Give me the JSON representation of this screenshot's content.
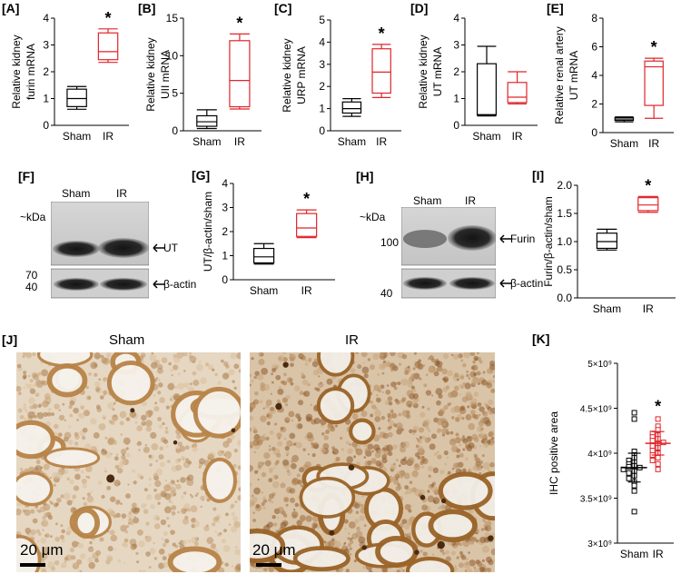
{
  "colors": {
    "sham": "#000000",
    "ir": "#e0252a"
  },
  "chart_data": [
    {
      "id": "A",
      "type": "box",
      "panel_label": "[A]",
      "ylabel": [
        "Relative kidney",
        "furin mRNA"
      ],
      "ylim": [
        0,
        4
      ],
      "yticks": [
        0,
        1,
        2,
        3,
        4
      ],
      "ytick_labels": [
        "0",
        "1",
        "2",
        "3",
        "4"
      ],
      "categories": [
        "Sham",
        "IR"
      ],
      "boxes": [
        {
          "min": 0.6,
          "q1": 0.7,
          "median": 1.0,
          "q3": 1.35,
          "max": 1.45
        },
        {
          "min": 2.35,
          "q1": 2.45,
          "median": 2.75,
          "q3": 3.45,
          "max": 3.6
        }
      ],
      "annotations": [
        "",
        "*"
      ]
    },
    {
      "id": "B",
      "type": "box",
      "panel_label": "[B]",
      "ylabel": [
        "Relative kidney",
        "UII mRNA"
      ],
      "ylim": [
        0,
        15
      ],
      "yticks": [
        0,
        5,
        10,
        15
      ],
      "ytick_labels": [
        "0",
        "5",
        "10",
        "15"
      ],
      "categories": [
        "Sham",
        "IR"
      ],
      "boxes": [
        {
          "min": 0.3,
          "q1": 0.6,
          "median": 1.2,
          "q3": 2.0,
          "max": 2.8
        },
        {
          "min": 2.9,
          "q1": 3.2,
          "median": 6.7,
          "q3": 12.0,
          "max": 12.9
        }
      ],
      "annotations": [
        "",
        "*"
      ]
    },
    {
      "id": "C",
      "type": "box",
      "panel_label": "[C]",
      "ylabel": [
        "Relative kidney",
        "URP mRNA"
      ],
      "ylim": [
        0,
        5
      ],
      "yticks": [
        0,
        1,
        2,
        3,
        4,
        5
      ],
      "ytick_labels": [
        "0",
        "1",
        "2",
        "3",
        "4",
        "5"
      ],
      "categories": [
        "Sham",
        "IR"
      ],
      "boxes": [
        {
          "min": 0.65,
          "q1": 0.8,
          "median": 1.0,
          "q3": 1.3,
          "max": 1.45
        },
        {
          "min": 1.5,
          "q1": 1.7,
          "median": 2.65,
          "q3": 3.7,
          "max": 3.9
        }
      ],
      "annotations": [
        "",
        "*"
      ]
    },
    {
      "id": "D",
      "type": "box",
      "panel_label": "[D]",
      "ylabel": [
        "Relative kidney",
        "UT mRNA"
      ],
      "ylim": [
        0,
        4
      ],
      "yticks": [
        0,
        1,
        2,
        3,
        4
      ],
      "ytick_labels": [
        "0",
        "1",
        "2",
        "3",
        "4"
      ],
      "categories": [
        "Sham",
        "IR"
      ],
      "boxes": [
        {
          "min": 0.35,
          "q1": 0.38,
          "median": 0.4,
          "q3": 2.3,
          "max": 2.95
        },
        {
          "min": 0.8,
          "q1": 0.85,
          "median": 1.05,
          "q3": 1.6,
          "max": 2.0
        }
      ],
      "annotations": [
        "",
        ""
      ]
    },
    {
      "id": "E",
      "type": "box",
      "panel_label": "[E]",
      "ylabel": [
        "Relative renal artery",
        "UT mRNA"
      ],
      "ylim": [
        0,
        8
      ],
      "yticks": [
        0,
        2,
        4,
        6,
        8
      ],
      "ytick_labels": [
        "0",
        "2",
        "4",
        "6",
        "8"
      ],
      "categories": [
        "Sham",
        "IR"
      ],
      "boxes": [
        {
          "min": 0.75,
          "q1": 0.85,
          "median": 0.95,
          "q3": 1.05,
          "max": 1.1
        },
        {
          "min": 1.0,
          "q1": 1.9,
          "median": 4.6,
          "q3": 5.0,
          "max": 5.2
        }
      ],
      "annotations": [
        "",
        "*"
      ]
    },
    {
      "id": "G",
      "type": "box",
      "panel_label": "[G]",
      "ylabel": [
        "UT/β-actin/sham"
      ],
      "ylim": [
        0,
        4
      ],
      "yticks": [
        0,
        1,
        2,
        3,
        4
      ],
      "ytick_labels": [
        "0",
        "1",
        "2",
        "3",
        "4"
      ],
      "categories": [
        "Sham",
        "IR"
      ],
      "boxes": [
        {
          "min": 0.65,
          "q1": 0.7,
          "median": 0.95,
          "q3": 1.3,
          "max": 1.5
        },
        {
          "min": 1.75,
          "q1": 1.8,
          "median": 2.15,
          "q3": 2.75,
          "max": 2.9
        }
      ],
      "annotations": [
        "",
        "*"
      ]
    },
    {
      "id": "I",
      "type": "box",
      "panel_label": "[I]",
      "ylabel": [
        "Furin/β-actin/sham"
      ],
      "ylim": [
        0,
        2.0
      ],
      "yticks": [
        0,
        0.5,
        1.0,
        1.5,
        2.0
      ],
      "ytick_labels": [
        "0.0",
        "0.5",
        "1.0",
        "1.5",
        "2.0"
      ],
      "categories": [
        "Sham",
        "IR"
      ],
      "boxes": [
        {
          "min": 0.85,
          "q1": 0.88,
          "median": 1.0,
          "q3": 1.15,
          "max": 1.22
        },
        {
          "min": 1.52,
          "q1": 1.55,
          "median": 1.65,
          "q3": 1.78,
          "max": 1.8
        }
      ],
      "annotations": [
        "",
        "*"
      ]
    },
    {
      "id": "K",
      "type": "scatter",
      "panel_label": "[K]",
      "ylabel": [
        "IHC positive area"
      ],
      "ylim": [
        3000000000.0,
        5000000000.0
      ],
      "yticks": [
        3000000000.0,
        3500000000.0,
        4000000000.0,
        4500000000.0,
        5000000000.0
      ],
      "ytick_labels": [
        "3×10⁹",
        "3.5×10⁹",
        "4×10⁹",
        "4.5×10⁹",
        "5×10⁹"
      ],
      "categories": [
        "Sham",
        "IR"
      ],
      "series": [
        {
          "values": [
            4450000000.0,
            4380000000.0,
            4020000000.0,
            3980000000.0,
            3950000000.0,
            3920000000.0,
            3900000000.0,
            3880000000.0,
            3860000000.0,
            3850000000.0,
            3840000000.0,
            3820000000.0,
            3800000000.0,
            3780000000.0,
            3750000000.0,
            3720000000.0,
            3680000000.0,
            3640000000.0,
            3580000000.0,
            3350000000.0
          ],
          "mean": 3840000000.0,
          "sd": 160000000.0
        },
        {
          "values": [
            4380000000.0,
            4300000000.0,
            4260000000.0,
            4220000000.0,
            4200000000.0,
            4180000000.0,
            4160000000.0,
            4140000000.0,
            4120000000.0,
            4100000000.0,
            4080000000.0,
            4060000000.0,
            4030000000.0,
            4000000000.0,
            3980000000.0,
            3950000000.0,
            3920000000.0,
            3880000000.0,
            3820000000.0
          ],
          "mean": 4110000000.0,
          "sd": 130000000.0
        }
      ],
      "annotations": [
        "",
        "*"
      ]
    }
  ],
  "blots": {
    "F": {
      "panel_label": "[F]",
      "lane_labels": [
        "Sham",
        "IR"
      ],
      "kda_label": "~kDa",
      "markers": [
        "70",
        "40"
      ],
      "band_labels": [
        "UT",
        "β-actin"
      ]
    },
    "H": {
      "panel_label": "[H]",
      "lane_labels": [
        "Sham",
        "IR"
      ],
      "kda_label": "~kDa",
      "markers": [
        "100",
        "40"
      ],
      "band_labels": [
        "Furin",
        "β-actin"
      ]
    }
  },
  "micrographs": {
    "panel_label": "[J]",
    "left": {
      "title": "Sham",
      "scale": "20 μm"
    },
    "right": {
      "title": "IR",
      "scale": "20 μm"
    }
  }
}
